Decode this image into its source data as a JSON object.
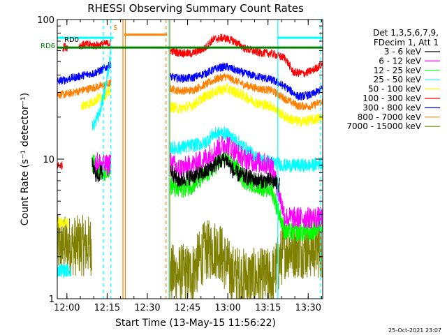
{
  "chart_data": {
    "type": "line",
    "title": "RHESSI Observing Summary Count Rates",
    "xlabel": "Start Time (13-May-15 11:56:22)",
    "ylabel": "Count Rate (s⁻¹ detector⁻¹)",
    "yscale": "log",
    "ylim": [
      1,
      100
    ],
    "xlim_minutes": [
      0,
      99
    ],
    "x_tick_labels": [
      "12:00",
      "12:15",
      "12:30",
      "12:45",
      "13:00",
      "13:15",
      "13:30"
    ],
    "x_tick_minutes": [
      3.6,
      18.6,
      33.6,
      48.6,
      63.6,
      78.6,
      93.6
    ],
    "y_tick_labels": [
      "1",
      "10",
      "100"
    ],
    "y_tick_values": [
      1,
      10,
      100
    ],
    "legend_header": [
      "Det 1,3,5,6,7,9,",
      "FDecim 1, Att 1"
    ],
    "legend_placement": "right",
    "annotations": {
      "rd0": "RD0",
      "rd6": "RD6",
      "s_flag": "S",
      "timestamp": "25-Oct-2021 23:07"
    },
    "markers": [
      {
        "name": "rd0",
        "color": "#00ffff",
        "y": 74,
        "segments": [
          [
            0,
            21
          ],
          [
            82,
            101
          ]
        ]
      },
      {
        "name": "rd6",
        "color": "#008000",
        "y": 63,
        "segments": [
          [
            0,
            101
          ]
        ]
      },
      {
        "name": "s",
        "color": "#ff8000",
        "y": 78,
        "segments": [
          [
            25,
            41
          ]
        ]
      }
    ],
    "vertical_lines": [
      {
        "minute": 24.5,
        "color": "#ff8000",
        "dash": false
      },
      {
        "minute": 25.4,
        "color": "#ff8000",
        "dash": false
      },
      {
        "minute": 40.6,
        "color": "#ff8000",
        "dash": true
      },
      {
        "minute": 42.0,
        "color": "#ff8000",
        "dash": false
      },
      {
        "minute": 41.7,
        "color": "#00ffff",
        "dash": false
      },
      {
        "minute": 82.3,
        "color": "#00ffff",
        "dash": false
      },
      {
        "minute": 17.2,
        "color": "#00ffff",
        "dash": true
      },
      {
        "minute": 20.0,
        "color": "#00ffff",
        "dash": true
      },
      {
        "minute": 98.2,
        "color": "#00ffff",
        "dash": true
      }
    ],
    "gaps": [
      [
        21,
        42
      ]
    ],
    "series": [
      {
        "name": "3 - 6 keV",
        "color": "#000000",
        "noise": 0.06,
        "segments": [
          {
            "t": [
              13,
              14,
              15,
              16,
              17
            ],
            "v": [
              9,
              8,
              7.5,
              8,
              8
            ]
          },
          {
            "t": [
              42,
              45,
              50,
              55,
              60,
              63,
              66,
              70,
              75,
              80,
              83
            ],
            "v": [
              8.5,
              7,
              7.5,
              8,
              9.5,
              10,
              8,
              7.5,
              7,
              7,
              6.5
            ]
          }
        ]
      },
      {
        "name": "6 - 12 keV",
        "color": "#ff00ff",
        "noise": 0.08,
        "segments": [
          {
            "t": [
              14,
              15,
              17,
              19,
              20
            ],
            "v": [
              9,
              9.5,
              9,
              9,
              10
            ]
          },
          {
            "t": [
              42,
              45,
              50,
              55,
              60,
              63,
              67,
              70,
              75,
              80,
              85,
              90,
              95,
              99
            ],
            "v": [
              9.5,
              8.5,
              9,
              10,
              12,
              13,
              11,
              10,
              9.5,
              9,
              3.8,
              3.8,
              3.8,
              3.8
            ]
          }
        ]
      },
      {
        "name": "12 - 25 keV",
        "color": "#00ff00",
        "noise": 0.07,
        "segments": [
          {
            "t": [
              13,
              15,
              17,
              19,
              20
            ],
            "v": [
              9.5,
              8.5,
              8,
              8.5,
              9
            ]
          },
          {
            "t": [
              42,
              45,
              50,
              55,
              60,
              63,
              67,
              70,
              75,
              80,
              85,
              90,
              95,
              99
            ],
            "v": [
              6.5,
              6,
              6.5,
              7.5,
              9.5,
              10.5,
              8.5,
              7,
              6.5,
              6,
              3,
              3,
              3,
              3.5
            ]
          }
        ]
      },
      {
        "name": "25 - 50 keV",
        "color": "#00ffff",
        "noise": 0.05,
        "segments": [
          {
            "t": [
              0,
              1,
              2,
              3,
              4,
              5
            ],
            "v": [
              1.6,
              1.6,
              1.6,
              1.6,
              1.6,
              1.6
            ]
          },
          {
            "t": [
              13,
              14,
              15,
              16,
              17,
              18,
              19,
              20
            ],
            "v": [
              17,
              18,
              20,
              22,
              27,
              33,
              43,
              57
            ]
          },
          {
            "t": [
              42,
              45,
              50,
              55,
              58,
              62,
              66,
              70,
              75,
              80,
              85,
              90,
              95,
              99
            ],
            "v": [
              12,
              12,
              12.5,
              13,
              15,
              15.5,
              14,
              12,
              10,
              9.5,
              9,
              9,
              9,
              9.5
            ]
          }
        ]
      },
      {
        "name": "50 - 100 keV",
        "color": "#ffff00",
        "noise": 0.04,
        "segments": [
          {
            "t": [
              0,
              2,
              4
            ],
            "v": [
              3.5,
              3.5,
              3.5
            ]
          },
          {
            "t": [
              9,
              12,
              15,
              18,
              20
            ],
            "v": [
              24,
              25,
              27,
              29,
              31
            ]
          },
          {
            "t": [
              42,
              45,
              50,
              55,
              60,
              63,
              67,
              70,
              75,
              80,
              85,
              90,
              95,
              99
            ],
            "v": [
              24,
              23,
              24,
              28,
              31,
              32,
              30,
              28,
              25,
              24,
              20,
              18.5,
              19,
              20
            ]
          }
        ]
      },
      {
        "name": "100 - 300 keV",
        "color": "#ff0000",
        "noise": 0.03,
        "segments": [
          {
            "t": [
              0,
              1,
              2
            ],
            "v": [
              9,
              9,
              9
            ]
          },
          {
            "t": [
              2,
              3,
              4
            ],
            "v": [
              63,
              64,
              63
            ]
          },
          {
            "t": [
              8,
              10,
              12,
              14,
              16,
              18,
              20
            ],
            "v": [
              65,
              66,
              66,
              65,
              66,
              67,
              68
            ]
          },
          {
            "t": [
              42,
              45,
              50,
              55,
              58,
              62,
              66,
              70,
              75,
              80,
              85,
              88,
              92,
              95,
              99
            ],
            "v": [
              60,
              58,
              57,
              62,
              72,
              74,
              70,
              62,
              58,
              57,
              53,
              42,
              41,
              43,
              48
            ]
          }
        ]
      },
      {
        "name": "300 - 800 keV",
        "color": "#0000ff",
        "noise": 0.03,
        "segments": [
          {
            "t": [
              0,
              3,
              5,
              8,
              10,
              13,
              16,
              19,
              20
            ],
            "v": [
              36,
              37,
              38,
              39,
              40,
              41,
              43,
              46,
              48
            ]
          },
          {
            "t": [
              42,
              45,
              50,
              55,
              60,
              63,
              67,
              70,
              75,
              80,
              85,
              90,
              95,
              99
            ],
            "v": [
              39,
              38,
              38,
              41,
              45,
              46,
              43,
              41,
              39,
              37,
              33,
              28,
              29,
              32
            ]
          }
        ]
      },
      {
        "name": "800 - 7000 keV",
        "color": "#ff8000",
        "noise": 0.03,
        "segments": [
          {
            "t": [
              0,
              3,
              6,
              9,
              12,
              15,
              18,
              20
            ],
            "v": [
              29,
              29,
              30,
              31,
              32,
              33,
              34,
              35
            ]
          },
          {
            "t": [
              42,
              45,
              50,
              55,
              60,
              63,
              67,
              70,
              75,
              80,
              85,
              90,
              95,
              99
            ],
            "v": [
              32,
              31,
              31,
              34,
              38,
              39,
              36,
              34,
              32,
              31,
              27,
              24,
              24,
              26
            ]
          }
        ]
      },
      {
        "name": "7000 - 15000 keV",
        "color": "#808000",
        "noise": 0.22,
        "segments": [
          {
            "t": [
              0,
              5,
              10,
              13
            ],
            "v": [
              2.4,
              2.4,
              2.4,
              2.4
            ]
          },
          {
            "t": [
              42,
              50,
              55,
              60,
              65,
              70,
              80,
              85,
              90,
              99
            ],
            "v": [
              1.5,
              1.5,
              2.2,
              2.3,
              1.5,
              1.4,
              1.4,
              2.3,
              2.3,
              2.3
            ]
          }
        ]
      }
    ]
  }
}
